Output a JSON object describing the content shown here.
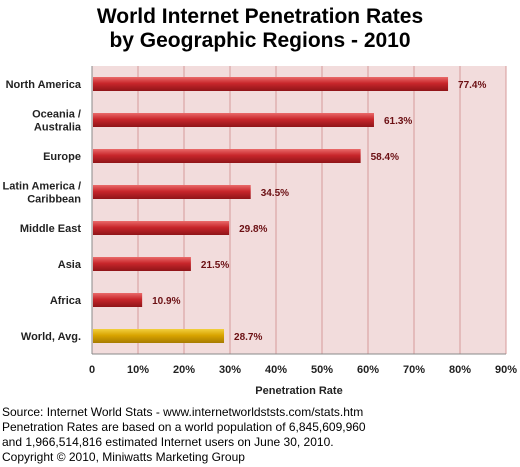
{
  "chart_data": {
    "type": "bar",
    "orientation": "horizontal",
    "title": "World Internet Penetration Rates",
    "subtitle": "by Geographic Regions - 2010",
    "xlabel": "Penetration Rate",
    "ylabel": "",
    "xlim": [
      0,
      90
    ],
    "ticks": [
      "0",
      "10%",
      "20%",
      "30%",
      "40%",
      "50%",
      "60%",
      "70%",
      "80%",
      "90%"
    ],
    "tick_values": [
      0,
      10,
      20,
      30,
      40,
      50,
      60,
      70,
      80,
      90
    ],
    "grid": true,
    "categories": [
      [
        "North America"
      ],
      [
        "Oceania  /",
        "Australia"
      ],
      [
        "Europe"
      ],
      [
        "Latin America /",
        "Caribbean"
      ],
      [
        "Middle East"
      ],
      [
        "Asia"
      ],
      [
        "Africa"
      ],
      [
        "World, Avg."
      ]
    ],
    "values": [
      77.4,
      61.3,
      58.4,
      34.5,
      29.8,
      21.5,
      10.9,
      28.7
    ],
    "value_labels": [
      "77.4%",
      "61.3%",
      "58.4%",
      "34.5%",
      "29.8%",
      "21.5%",
      "10.9%",
      "28.7%"
    ],
    "colors": {
      "bar": "#c8262b",
      "highlight_bar": "#d9a400",
      "plot_background": "#f2dcdc",
      "gridline": "#d79a9a",
      "value_label": "#6b0f13"
    },
    "highlight_index": 7
  },
  "footer": {
    "lines": [
      "Source: Internet World Stats - www.internetworldststs.com/stats.htm",
      "Penetration Rates are based on a world population of 6,845,609,960",
      "and 1,966,514,816 estimated Internet users on June 30, 2010.",
      "Copyright © 2010, Miniwatts Marketing Group"
    ]
  }
}
